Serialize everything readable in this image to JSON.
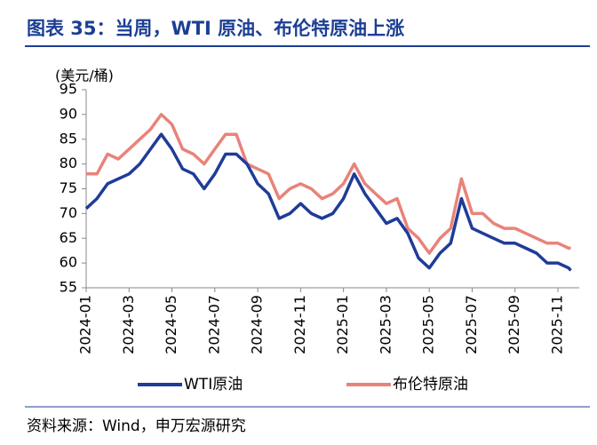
{
  "chart_data": {
    "type": "line",
    "title": "图表 35：当周，WTI 原油、布伦特原油上涨",
    "y_label": "(美元/桶)",
    "source": "资料来源：Wind，申万宏源研究",
    "x": [
      0,
      0.5,
      1,
      1.5,
      2,
      2.5,
      3,
      3.5,
      4,
      4.5,
      5,
      5.5,
      6,
      6.5,
      7,
      7.5,
      8,
      8.5,
      9,
      9.5,
      10,
      10.5,
      11,
      11.5,
      12,
      12.5,
      13,
      13.5,
      14,
      14.5,
      15,
      15.5,
      16,
      16.5,
      17,
      17.5,
      18,
      18.5,
      19,
      19.5,
      20,
      20.5,
      21,
      21.5,
      22,
      22.5,
      22.6
    ],
    "xlim": [
      0,
      23
    ],
    "xticks": [
      {
        "value": 0,
        "label": "2024-01"
      },
      {
        "value": 2,
        "label": "2024-03"
      },
      {
        "value": 4,
        "label": "2024-05"
      },
      {
        "value": 6,
        "label": "2024-07"
      },
      {
        "value": 8,
        "label": "2024-09"
      },
      {
        "value": 10,
        "label": "2024-11"
      },
      {
        "value": 12,
        "label": "2025-01"
      },
      {
        "value": 14,
        "label": "2025-03"
      },
      {
        "value": 16,
        "label": "2025-05"
      },
      {
        "value": 18,
        "label": "2025-07"
      },
      {
        "value": 20,
        "label": "2025-09"
      },
      {
        "value": 22,
        "label": "2025-11"
      }
    ],
    "ylim": [
      55,
      95
    ],
    "yticks": [
      55,
      60,
      65,
      70,
      75,
      80,
      85,
      90,
      95
    ],
    "grid": false,
    "legend": "bottom",
    "series": [
      {
        "name": "WTI原油",
        "color": "#1f3c98",
        "values": [
          71,
          73,
          76,
          77,
          78,
          80,
          83,
          86,
          83,
          79,
          78,
          75,
          78,
          82,
          82,
          80,
          76,
          74,
          69,
          70,
          72,
          70,
          69,
          70,
          73,
          78,
          74,
          71,
          68,
          69,
          66,
          61,
          59,
          62,
          64,
          73,
          67,
          66,
          65,
          64,
          64,
          63,
          62,
          60,
          60,
          59,
          58.5
        ]
      },
      {
        "name": "布伦特原油",
        "color": "#e8837a",
        "values": [
          78,
          78,
          82,
          81,
          83,
          85,
          87,
          90,
          88,
          83,
          82,
          80,
          83,
          86,
          86,
          80,
          79,
          78,
          73,
          75,
          76,
          75,
          73,
          74,
          76,
          80,
          76,
          74,
          72,
          73,
          67,
          65,
          62,
          65,
          67,
          77,
          70,
          70,
          68,
          67,
          67,
          66,
          65,
          64,
          64,
          63,
          63
        ]
      }
    ]
  }
}
